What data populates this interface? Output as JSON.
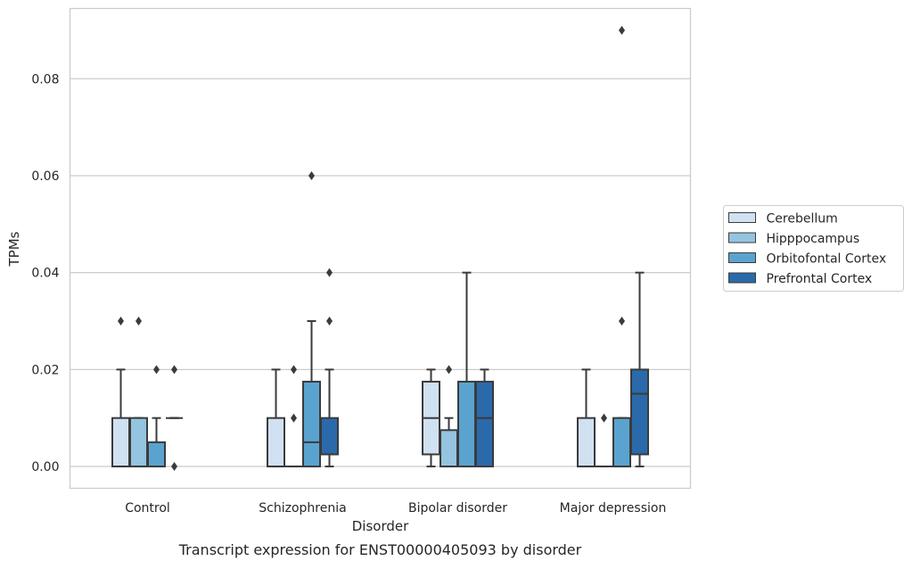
{
  "chart_data": {
    "type": "box",
    "caption": "Transcript expression for ENST00000405093 by disorder",
    "xlabel": "Disorder",
    "ylabel": "TPMs",
    "categories": [
      "Control",
      "Schizophrenia",
      "Bipolar disorder",
      "Major depression"
    ],
    "ylim": [
      -0.0045,
      0.0945
    ],
    "yticks": [
      0.0,
      0.02,
      0.04,
      0.06,
      0.08
    ],
    "ytick_labels": [
      "0.00",
      "0.02",
      "0.04",
      "0.06",
      "0.08"
    ],
    "grid": "horizontal",
    "legend_placement": "center-right",
    "series": [
      {
        "name": "Cerebellum",
        "color": "#d0e1f2",
        "boxes": [
          {
            "q1": 0.0,
            "median": 0.0,
            "q3": 0.01,
            "whisker_low": 0.0,
            "whisker_high": 0.02,
            "outliers": [
              0.03
            ]
          },
          {
            "q1": 0.0,
            "median": 0.0,
            "q3": 0.01,
            "whisker_low": 0.0,
            "whisker_high": 0.02,
            "outliers": []
          },
          {
            "q1": 0.0025,
            "median": 0.01,
            "q3": 0.0175,
            "whisker_low": 0.0,
            "whisker_high": 0.02,
            "outliers": []
          },
          {
            "q1": 0.0,
            "median": 0.0,
            "q3": 0.01,
            "whisker_low": 0.0,
            "whisker_high": 0.02,
            "outliers": []
          }
        ]
      },
      {
        "name": "Hipppocampus",
        "color": "#94c4df",
        "boxes": [
          {
            "q1": 0.0,
            "median": 0.0,
            "q3": 0.01,
            "whisker_low": 0.0,
            "whisker_high": 0.01,
            "outliers": [
              0.03
            ]
          },
          {
            "q1": 0.0,
            "median": 0.0,
            "q3": 0.0,
            "whisker_low": 0.0,
            "whisker_high": 0.0,
            "outliers": [
              0.01,
              0.02
            ]
          },
          {
            "q1": 0.0,
            "median": 0.0,
            "q3": 0.0075,
            "whisker_low": 0.0,
            "whisker_high": 0.01,
            "outliers": [
              0.02
            ]
          },
          {
            "q1": 0.0,
            "median": 0.0,
            "q3": 0.0,
            "whisker_low": 0.0,
            "whisker_high": 0.0,
            "outliers": [
              0.01
            ]
          }
        ]
      },
      {
        "name": "Orbitofontal Cortex",
        "color": "#5ba3cf",
        "boxes": [
          {
            "q1": 0.0,
            "median": 0.0,
            "q3": 0.005,
            "whisker_low": 0.0,
            "whisker_high": 0.01,
            "outliers": [
              0.02
            ]
          },
          {
            "q1": 0.0,
            "median": 0.005,
            "q3": 0.0175,
            "whisker_low": 0.0,
            "whisker_high": 0.03,
            "outliers": [
              0.06
            ]
          },
          {
            "q1": 0.0,
            "median": 0.0,
            "q3": 0.0175,
            "whisker_low": 0.0,
            "whisker_high": 0.04,
            "outliers": []
          },
          {
            "q1": 0.0,
            "median": 0.0,
            "q3": 0.01,
            "whisker_low": 0.0,
            "whisker_high": 0.01,
            "outliers": [
              0.03,
              0.09
            ]
          }
        ]
      },
      {
        "name": "Prefrontal Cortex",
        "color": "#2a6aaa",
        "boxes": [
          {
            "q1": 0.01,
            "median": 0.01,
            "q3": 0.01,
            "whisker_low": 0.01,
            "whisker_high": 0.01,
            "outliers": [
              0.0,
              0.02
            ]
          },
          {
            "q1": 0.0025,
            "median": 0.0025,
            "q3": 0.01,
            "whisker_low": 0.0,
            "whisker_high": 0.02,
            "outliers": [
              0.03,
              0.04
            ]
          },
          {
            "q1": 0.0,
            "median": 0.01,
            "q3": 0.0175,
            "whisker_low": 0.0,
            "whisker_high": 0.02,
            "outliers": []
          },
          {
            "q1": 0.0025,
            "median": 0.015,
            "q3": 0.02,
            "whisker_low": 0.0,
            "whisker_high": 0.04,
            "outliers": []
          }
        ]
      }
    ]
  }
}
